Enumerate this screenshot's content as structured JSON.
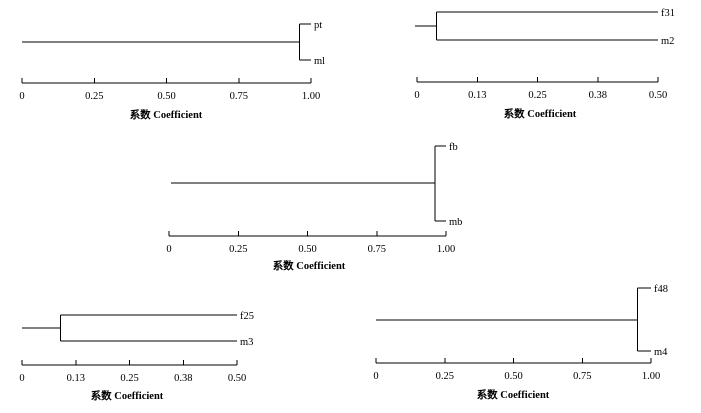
{
  "chart_data": [
    {
      "type": "dendrogram",
      "leaves": [
        "pt",
        "ml"
      ],
      "merge_coefficient": 0.96,
      "axis": {
        "ticks": [
          "0",
          "0.25",
          "0.50",
          "0.75",
          "1.00"
        ],
        "range": [
          0,
          1.0
        ]
      },
      "xlabel": "系数 Coefficient"
    },
    {
      "type": "dendrogram",
      "leaves": [
        "f31",
        "m2"
      ],
      "merge_coefficient": 0.04,
      "axis": {
        "ticks": [
          "0",
          "0.13",
          "0.25",
          "0.38",
          "0.50"
        ],
        "range": [
          0,
          0.5
        ]
      },
      "xlabel": "系数 Coefficient"
    },
    {
      "type": "dendrogram",
      "leaves": [
        "fb",
        "mb"
      ],
      "merge_coefficient": 0.96,
      "axis": {
        "ticks": [
          "0",
          "0.25",
          "0.50",
          "0.75",
          "1.00"
        ],
        "range": [
          0,
          1.0
        ]
      },
      "xlabel": "系数 Coefficient"
    },
    {
      "type": "dendrogram",
      "leaves": [
        "f25",
        "m3"
      ],
      "merge_coefficient": 0.09,
      "axis": {
        "ticks": [
          "0",
          "0.13",
          "0.25",
          "0.38",
          "0.50"
        ],
        "range": [
          0,
          0.5
        ]
      },
      "xlabel": "系数 Coefficient"
    },
    {
      "type": "dendrogram",
      "leaves": [
        "f48",
        "m4"
      ],
      "merge_coefficient": 0.95,
      "axis": {
        "ticks": [
          "0",
          "0.25",
          "0.50",
          "0.75",
          "1.00"
        ],
        "range": [
          0,
          1.0
        ]
      },
      "xlabel": "系数 Coefficient"
    }
  ]
}
